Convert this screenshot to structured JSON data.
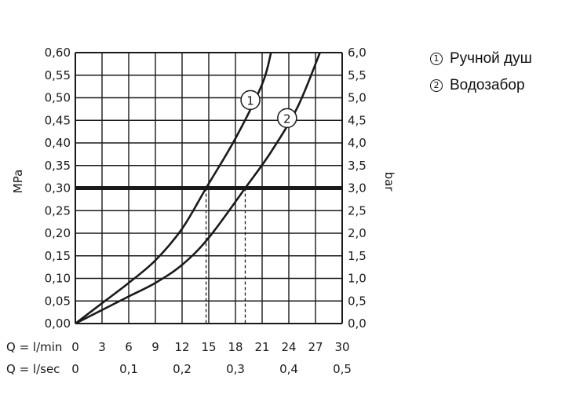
{
  "chart_data": {
    "type": "line",
    "y_left_label": "MPa",
    "y_right_label": "bar",
    "y_left_ticks": [
      "0,00",
      "0,05",
      "0,10",
      "0,15",
      "0,20",
      "0,25",
      "0,30",
      "0,35",
      "0,40",
      "0,45",
      "0,50",
      "0,55",
      "0,60"
    ],
    "y_right_ticks": [
      "0,0",
      "0,5",
      "1,0",
      "1,5",
      "2,0",
      "2,5",
      "3,0",
      "3,5",
      "4,0",
      "4,5",
      "5,0",
      "5,5",
      "6,0"
    ],
    "ylim": [
      0,
      0.6
    ],
    "xlim": [
      0,
      30
    ],
    "x_axis_lmin_label": "Q = l/min",
    "x_ticks_lmin": [
      "0",
      "3",
      "6",
      "9",
      "12",
      "15",
      "18",
      "21",
      "24",
      "27",
      "30"
    ],
    "x_axis_lsec_label": "Q = l/sec",
    "x_ticks_lsec": [
      "0",
      "0,1",
      "0,2",
      "0,3",
      "0,4",
      "0,5"
    ],
    "grid": true,
    "reference_line": {
      "y": 0.3,
      "intersections_x": [
        14.7,
        19.1
      ]
    },
    "series": [
      {
        "id": "1",
        "marker": "1",
        "x": [
          0,
          3,
          6,
          9,
          12,
          14.7,
          18,
          21,
          22
        ],
        "y": [
          0,
          0.045,
          0.09,
          0.14,
          0.21,
          0.3,
          0.41,
          0.53,
          0.6
        ]
      },
      {
        "id": "2",
        "marker": "2",
        "x": [
          0,
          3,
          6,
          9,
          12,
          15,
          19.1,
          22,
          25,
          27.5
        ],
        "y": [
          0,
          0.03,
          0.06,
          0.09,
          0.13,
          0.19,
          0.3,
          0.38,
          0.48,
          0.6
        ]
      }
    ]
  },
  "legend": {
    "items": [
      {
        "marker": "1",
        "label": "Ручной душ"
      },
      {
        "marker": "2",
        "label": "Водозабор"
      }
    ]
  }
}
